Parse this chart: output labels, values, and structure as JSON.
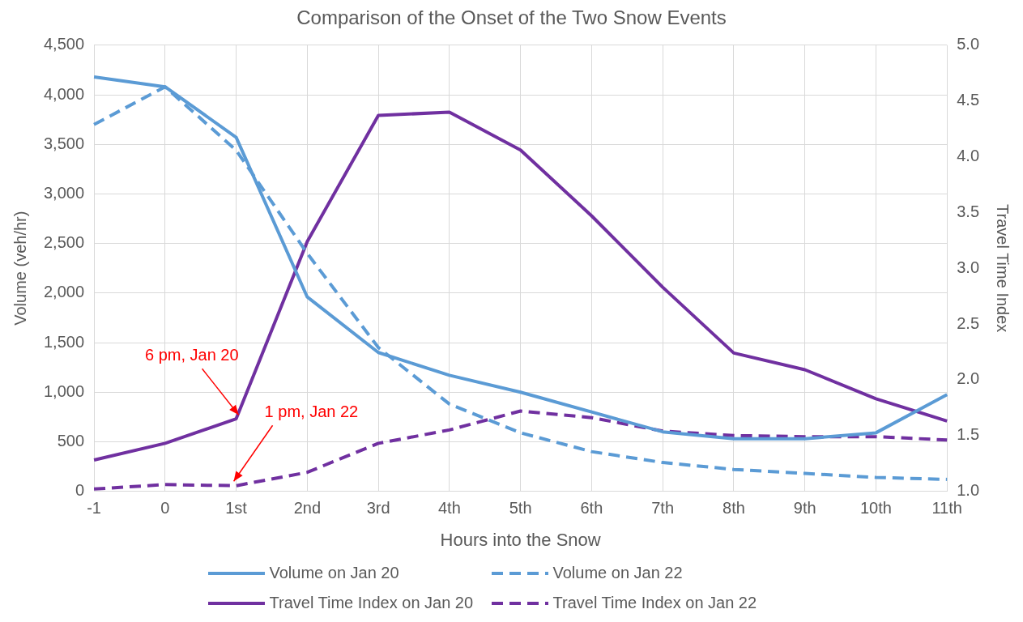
{
  "chart_data": {
    "type": "line",
    "title": "Comparison of the Onset of the Two Snow Events",
    "xlabel": "Hours into the Snow",
    "ylabel": "Volume (veh/hr)",
    "y2label": "Travel Time Index",
    "categories": [
      "-1",
      "0",
      "1st",
      "2nd",
      "3rd",
      "4th",
      "5th",
      "6th",
      "7th",
      "8th",
      "9th",
      "10th",
      "11th"
    ],
    "series": [
      {
        "name": "Volume on Jan 20",
        "color": "#5b9bd5",
        "line_style": "solid",
        "values": [
          4180,
          4080,
          3570,
          1960,
          1400,
          1170,
          1000,
          800,
          600,
          530,
          530,
          590,
          975
        ]
      },
      {
        "name": "Volume on Jan 22",
        "color": "#5b9bd5",
        "line_style": "dashed",
        "values": [
          3700,
          4080,
          3440,
          2400,
          1450,
          880,
          590,
          400,
          290,
          220,
          180,
          140,
          120
        ]
      },
      {
        "name": "Travel Time Index on Jan 20",
        "color": "#7030a0",
        "line_style": "solid",
        "axis": "y2",
        "values": [
          1.28,
          1.43,
          1.65,
          3.24,
          4.37,
          4.4,
          4.06,
          3.47,
          2.83,
          2.24,
          2.09,
          1.83,
          1.63
        ]
      },
      {
        "name": "Travel Time Index on Jan 22",
        "color": "#7030a0",
        "line_style": "dashed",
        "axis": "y2",
        "values": [
          1.02,
          1.06,
          1.05,
          1.17,
          1.43,
          1.55,
          1.72,
          1.66,
          1.54,
          1.5,
          1.49,
          1.49,
          1.46
        ]
      }
    ],
    "ylim": [
      0,
      4500
    ],
    "yticks": [
      {
        "value": 0,
        "label": "0"
      },
      {
        "value": 500,
        "label": "500"
      },
      {
        "value": 1000,
        "label": "1,000"
      },
      {
        "value": 1500,
        "label": "1,500"
      },
      {
        "value": 2000,
        "label": "2,000"
      },
      {
        "value": 2500,
        "label": "2,500"
      },
      {
        "value": 3000,
        "label": "3,000"
      },
      {
        "value": 3500,
        "label": "3,500"
      },
      {
        "value": 4000,
        "label": "4,000"
      },
      {
        "value": 4500,
        "label": "4,500"
      }
    ],
    "y2lim": [
      1,
      5
    ],
    "y2ticks": [
      {
        "value": 1,
        "label": "1.0"
      },
      {
        "value": 1.5,
        "label": "1.5"
      },
      {
        "value": 2,
        "label": "2.0"
      },
      {
        "value": 2.5,
        "label": "2.5"
      },
      {
        "value": 3,
        "label": "3.0"
      },
      {
        "value": 3.5,
        "label": "3.5"
      },
      {
        "value": 4,
        "label": "4.0"
      },
      {
        "value": 4.5,
        "label": "4.5"
      },
      {
        "value": 5,
        "label": "5.0"
      }
    ],
    "annotations": [
      {
        "text": "6 pm, Jan 20",
        "x": "1st",
        "y": 730
      },
      {
        "text": "1 pm, Jan 22",
        "x": "1st",
        "y": 60
      }
    ],
    "grid": true,
    "legend": "bottom",
    "marker": "none"
  }
}
